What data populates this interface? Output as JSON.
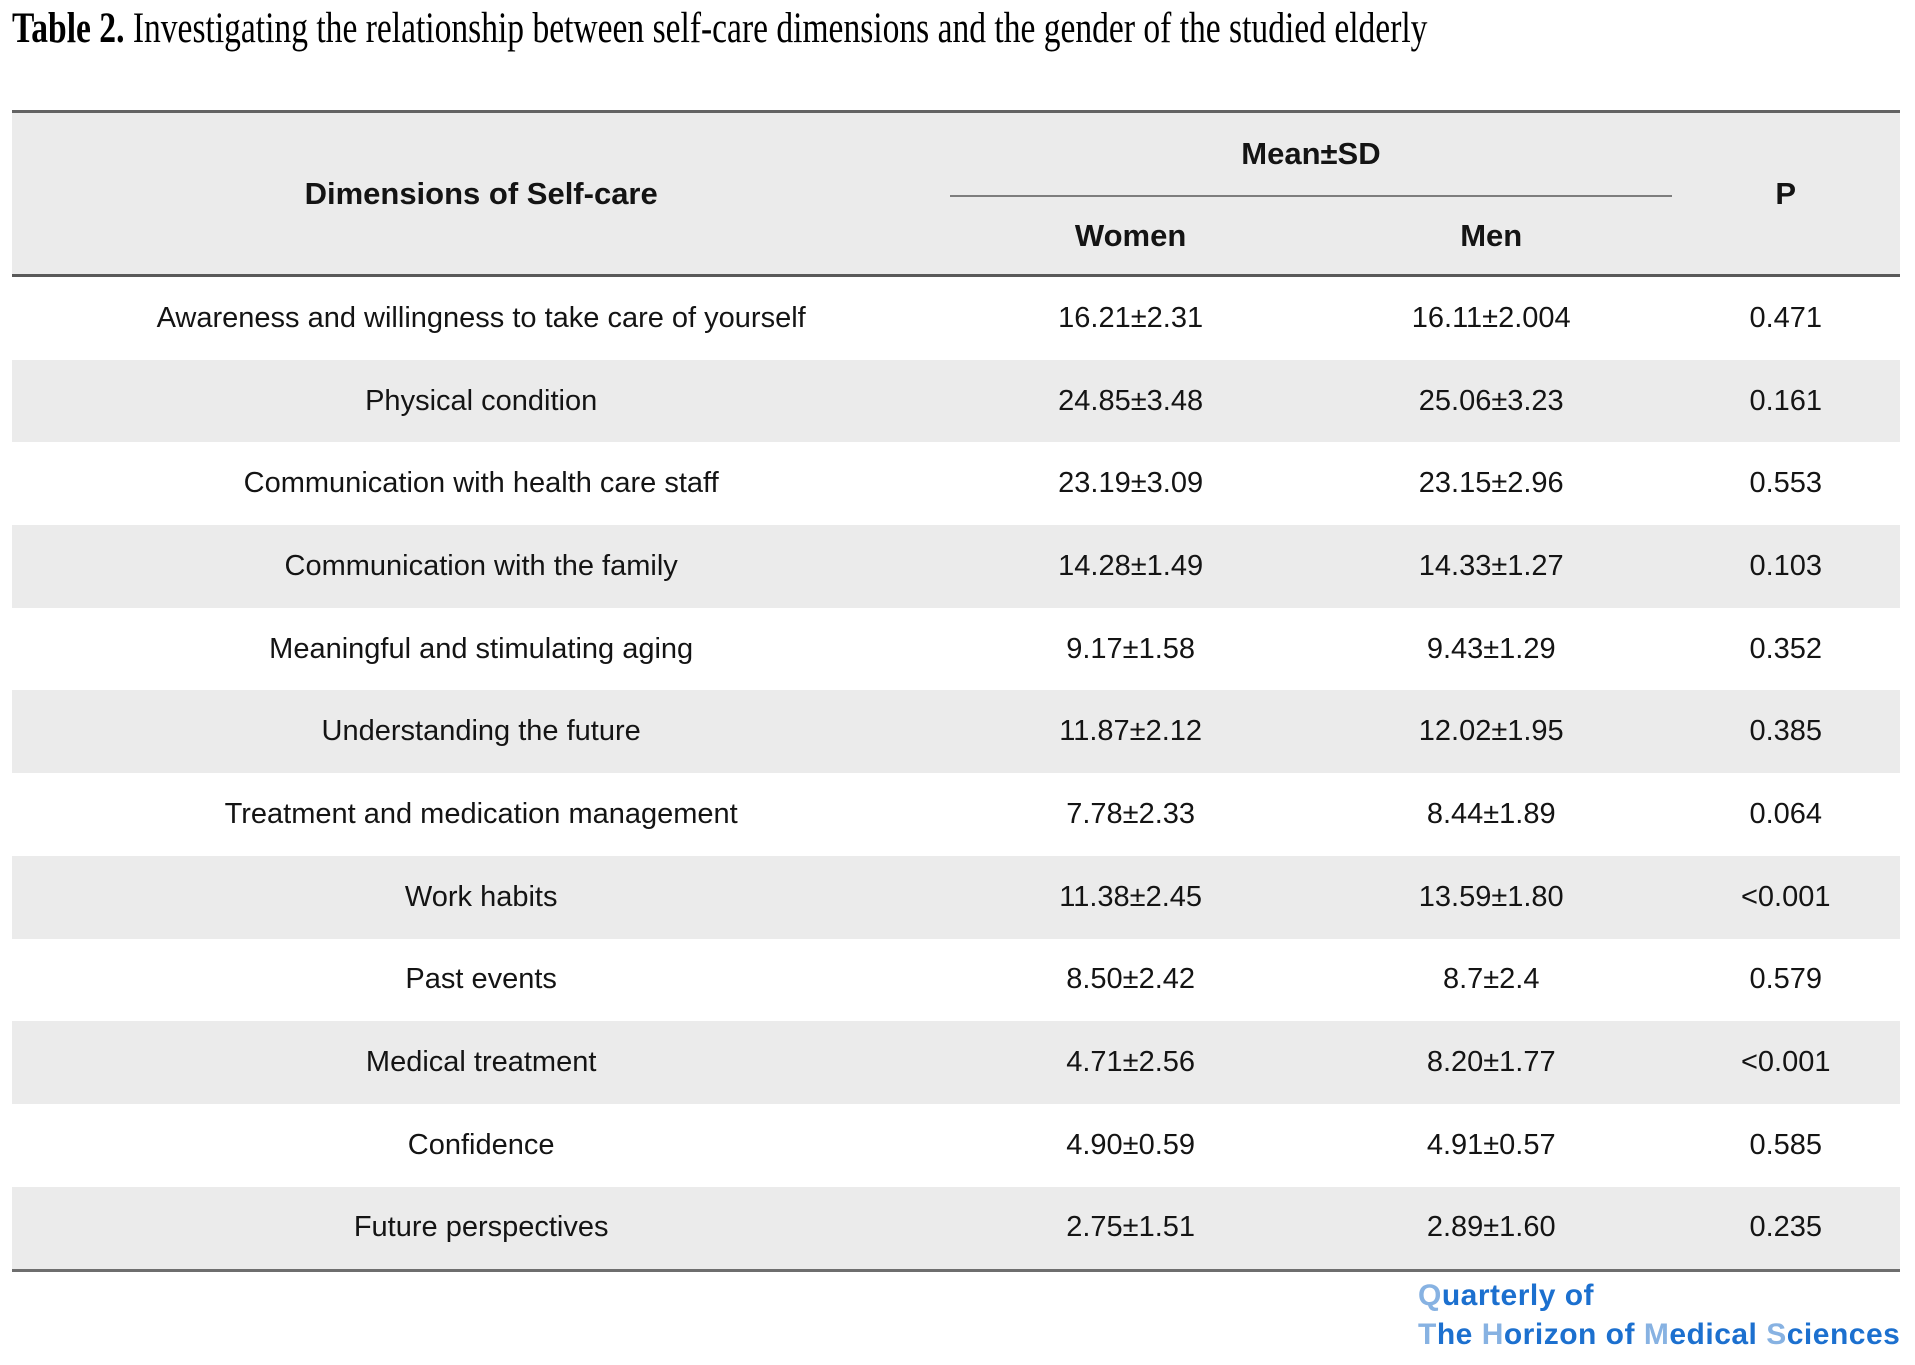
{
  "title": {
    "prefix": "Table 2.",
    "text": " Investigating the relationship between self-care dimensions and the gender of the studied elderly"
  },
  "table": {
    "headers": {
      "dimension": "Dimensions of Self-care",
      "group": "Mean±SD",
      "women": "Women",
      "men": "Men",
      "p": "P"
    },
    "rows": [
      {
        "dimension": "Awareness and willingness to take care of yourself",
        "women": "16.21±2.31",
        "men": "16.11±2.004",
        "p": "0.471"
      },
      {
        "dimension": "Physical condition",
        "women": "24.85±3.48",
        "men": "25.06±3.23",
        "p": "0.161"
      },
      {
        "dimension": "Communication with health care staff",
        "women": "23.19±3.09",
        "men": "23.15±2.96",
        "p": "0.553"
      },
      {
        "dimension": "Communication with the family",
        "women": "14.28±1.49",
        "men": "14.33±1.27",
        "p": "0.103"
      },
      {
        "dimension": "Meaningful and stimulating aging",
        "women": "9.17±1.58",
        "men": "9.43±1.29",
        "p": "0.352"
      },
      {
        "dimension": "Understanding the future",
        "women": "11.87±2.12",
        "men": "12.02±1.95",
        "p": "0.385"
      },
      {
        "dimension": "Treatment and medication management",
        "women": "7.78±2.33",
        "men": "8.44±1.89",
        "p": "0.064"
      },
      {
        "dimension": "Work habits",
        "women": "11.38±2.45",
        "men": "13.59±1.80",
        "p": "<0.001"
      },
      {
        "dimension": "Past events",
        "women": "8.50±2.42",
        "men": "8.7±2.4",
        "p": "0.579"
      },
      {
        "dimension": "Medical treatment",
        "women": "4.71±2.56",
        "men": "8.20±1.77",
        "p": "<0.001"
      },
      {
        "dimension": "Confidence",
        "women": "4.90±0.59",
        "men": "4.91±0.57",
        "p": "0.585"
      },
      {
        "dimension": "Future perspectives",
        "women": "2.75±1.51",
        "men": "2.89±1.60",
        "p": "0.235"
      }
    ]
  },
  "logo": {
    "line1": [
      {
        "text": "Q",
        "tone": "light"
      },
      {
        "text": "uarterly of",
        "tone": "dark"
      }
    ],
    "line2": [
      {
        "text": "T",
        "tone": "light"
      },
      {
        "text": "he ",
        "tone": "dark"
      },
      {
        "text": "H",
        "tone": "light"
      },
      {
        "text": "orizon of ",
        "tone": "dark"
      },
      {
        "text": "M",
        "tone": "light"
      },
      {
        "text": "edical ",
        "tone": "dark"
      },
      {
        "text": "S",
        "tone": "light"
      },
      {
        "text": "ciences",
        "tone": "dark"
      }
    ]
  },
  "colors": {
    "row_stripe": "#ebebeb",
    "table_border": "#636363",
    "logo_blue": "#1c70cf",
    "logo_light_blue": "#87b2e2"
  }
}
